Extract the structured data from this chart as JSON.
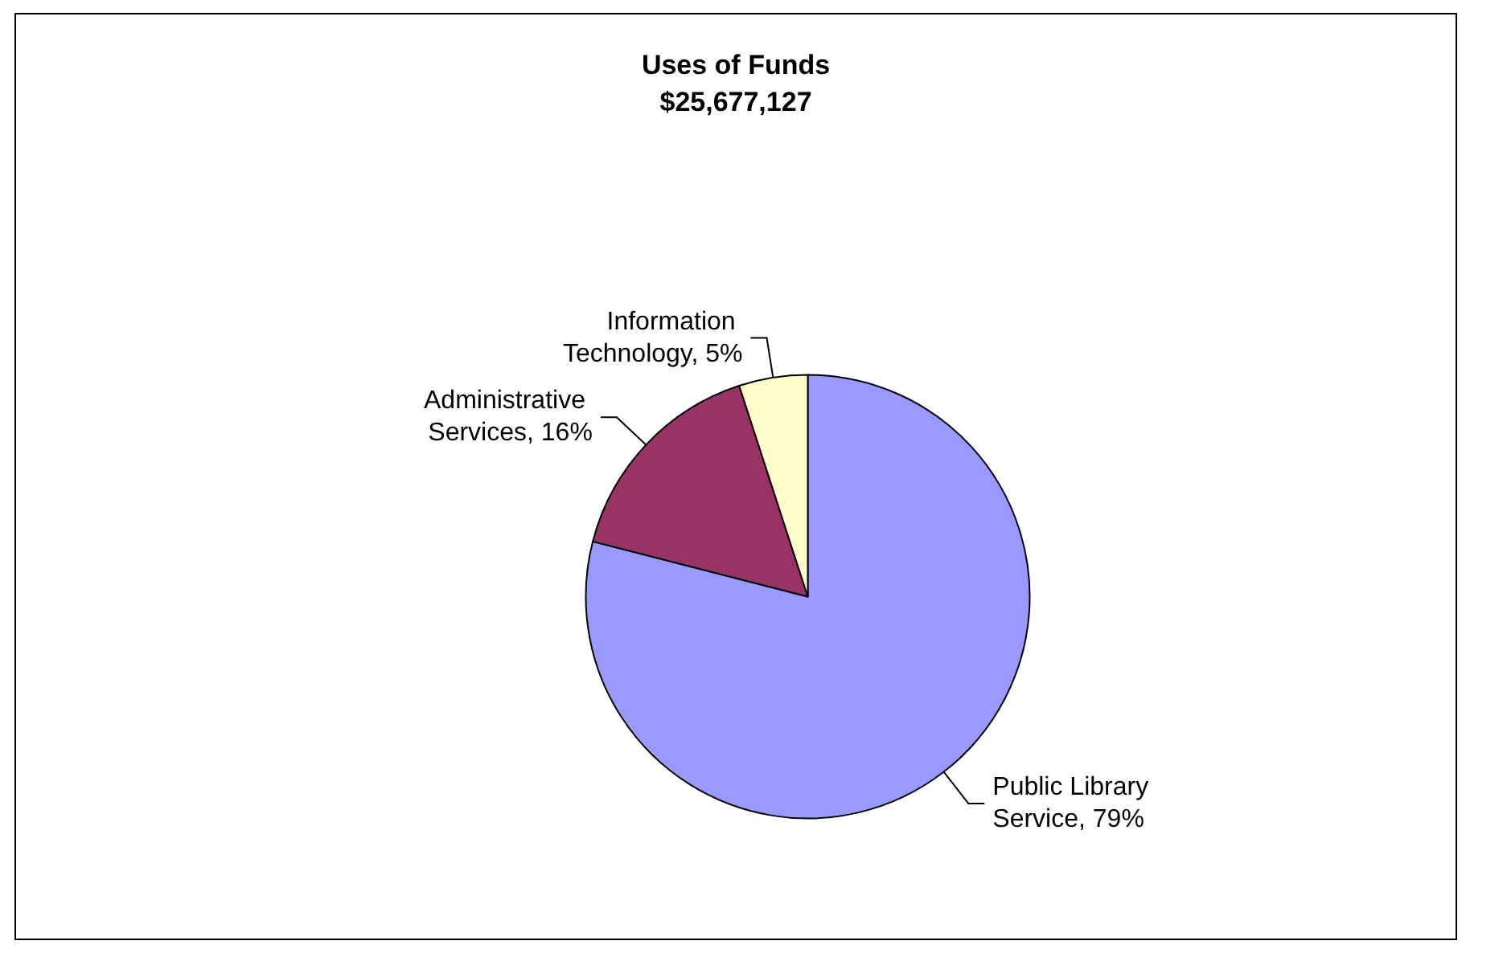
{
  "chart_data": {
    "type": "pie",
    "title": "Uses of Funds",
    "subtitle": "$25,677,127",
    "categories": [
      "Public Library Service",
      "Administrative Services",
      "Information Technology"
    ],
    "values": [
      79,
      16,
      5
    ],
    "value_labels": [
      "79%",
      "16%",
      "5%"
    ],
    "colors": [
      "#9999ff",
      "#993366",
      "#ffffcc"
    ],
    "legend": false
  }
}
